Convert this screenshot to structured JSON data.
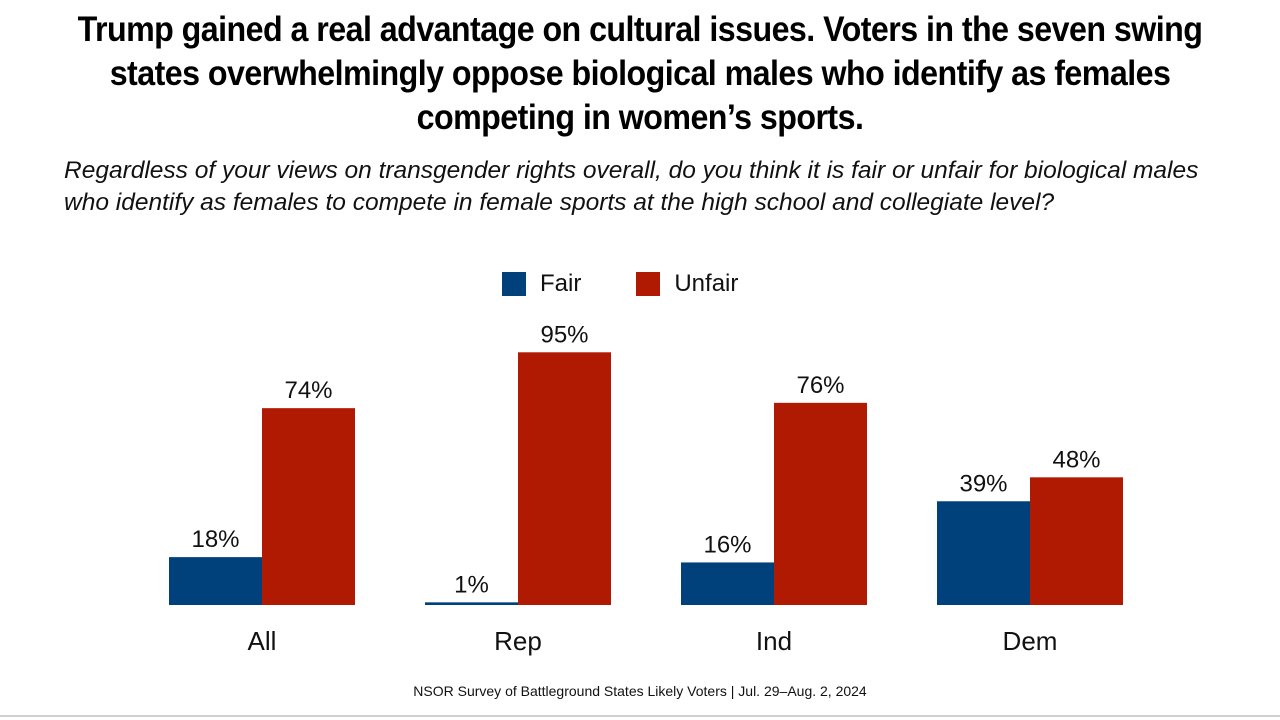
{
  "title": "Trump gained a real advantage on cultural issues. Voters in the seven swing states overwhelmingly oppose biological males who identify as females competing in women’s sports.",
  "question": "Regardless of your views on transgender rights overall, do you think it is fair or unfair for biological males who identify as females to compete in female sports at the high school and collegiate level?",
  "source": "NSOR Survey of Battleground States Likely Voters | Jul. 29–Aug. 2, 2024",
  "chart_data": {
    "type": "bar",
    "categories": [
      "All",
      "Rep",
      "Ind",
      "Dem"
    ],
    "series": [
      {
        "name": "Fair",
        "color": "#00417c",
        "values": [
          18,
          1,
          16,
          39
        ],
        "labels": [
          "18%",
          "1%",
          "16%",
          "39%"
        ]
      },
      {
        "name": "Unfair",
        "color": "#b01a02",
        "values": [
          74,
          95,
          76,
          48
        ],
        "labels": [
          "74%",
          "95%",
          "76%",
          "48%"
        ]
      }
    ],
    "legend": "top-center",
    "ylim": [
      0,
      100
    ],
    "grid": false
  }
}
